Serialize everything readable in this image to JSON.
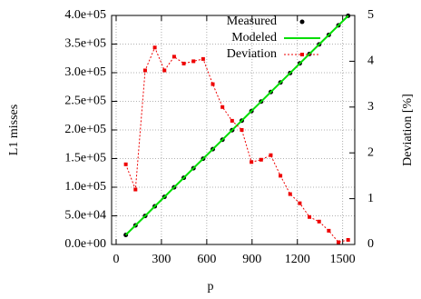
{
  "chart_data": {
    "type": "line",
    "xlabel": "p",
    "ylabel": "L1 misses",
    "y2label": "Deviation [%]",
    "x": [
      64,
      128,
      192,
      256,
      320,
      384,
      448,
      512,
      576,
      640,
      704,
      768,
      832,
      896,
      960,
      1024,
      1088,
      1152,
      1216,
      1280,
      1344,
      1408,
      1472,
      1536
    ],
    "series": [
      {
        "name": "Measured",
        "color": "#000000",
        "style": "points",
        "values": [
          16600,
          33300,
          49900,
          66600,
          83200,
          99800,
          116500,
          133100,
          149800,
          166400,
          183000,
          199700,
          216300,
          233000,
          249600,
          266200,
          282900,
          299500,
          316200,
          332800,
          349400,
          366100,
          382700,
          399400
        ]
      },
      {
        "name": "Modeled",
        "color": "#00dd00",
        "style": "line",
        "values": [
          16600,
          33300,
          49900,
          66600,
          83200,
          99800,
          116500,
          133100,
          149800,
          166400,
          183000,
          199700,
          216300,
          233000,
          249600,
          266200,
          282900,
          299500,
          316200,
          332800,
          349400,
          366100,
          382700,
          399400
        ]
      },
      {
        "name": "Deviation",
        "color": "#ee0000",
        "style": "linepoints",
        "axis": "y2",
        "values": [
          1.75,
          1.2,
          3.8,
          4.3,
          3.8,
          4.1,
          3.95,
          4.0,
          4.05,
          3.5,
          3.0,
          2.7,
          2.5,
          1.8,
          1.85,
          1.95,
          1.5,
          1.1,
          0.9,
          0.6,
          0.5,
          0.3,
          0.05,
          0.1
        ]
      }
    ],
    "xlim": [
      -30,
      1580
    ],
    "xticks": [
      0,
      300,
      600,
      900,
      1200,
      1500
    ],
    "ylim": [
      0,
      400000
    ],
    "yticks": [
      {
        "value": 0,
        "label": "0.0e+00"
      },
      {
        "value": 50000,
        "label": "5.0e+04"
      },
      {
        "value": 100000,
        "label": "1.0e+05"
      },
      {
        "value": 150000,
        "label": "1.5e+05"
      },
      {
        "value": 200000,
        "label": "2.0e+05"
      },
      {
        "value": 250000,
        "label": "2.5e+05"
      },
      {
        "value": 300000,
        "label": "3.0e+05"
      },
      {
        "value": 350000,
        "label": "3.5e+05"
      },
      {
        "value": 400000,
        "label": "4.0e+05"
      }
    ],
    "y2lim": [
      0,
      5
    ],
    "y2ticks": [
      0,
      1,
      2,
      3,
      4,
      5
    ],
    "grid": true,
    "legend": "top-right"
  }
}
